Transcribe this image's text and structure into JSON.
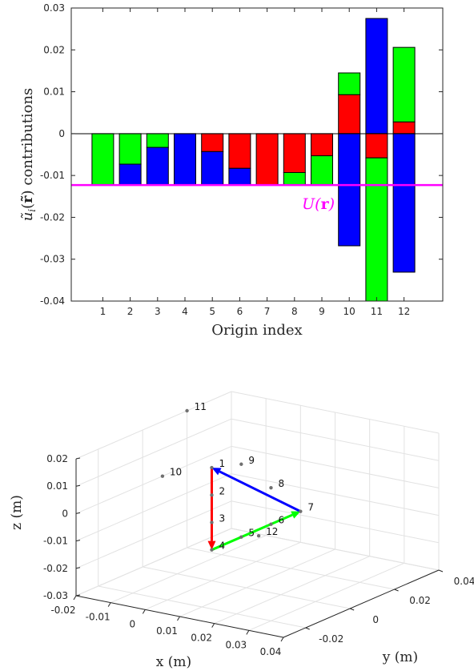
{
  "chart_data": [
    {
      "type": "bar",
      "stacked": true,
      "xlabel": "Origin index",
      "ylabel": "ũ_i(r̃) contributions",
      "ylim": [
        -0.04,
        0.03
      ],
      "yticks": [
        -0.04,
        -0.03,
        -0.02,
        -0.01,
        0,
        0.01,
        0.02,
        0.03
      ],
      "ytick_labels": [
        "-0.04",
        "-0.03",
        "-0.02",
        "-0.01",
        "0",
        "0.01",
        "0.02",
        "0.03"
      ],
      "categories": [
        "1",
        "2",
        "3",
        "4",
        "5",
        "6",
        "7",
        "8",
        "9",
        "10",
        "11",
        "12"
      ],
      "colors": {
        "green": "#00ff00",
        "red": "#ff0000",
        "blue": "#0000ff",
        "line": "#ff00ff"
      },
      "bars": [
        [
          {
            "c": "green",
            "from": 0,
            "to": -0.0123
          }
        ],
        [
          {
            "c": "green",
            "from": 0,
            "to": -0.0073
          },
          {
            "c": "blue",
            "from": -0.0073,
            "to": -0.0123
          }
        ],
        [
          {
            "c": "green",
            "from": 0,
            "to": -0.0033
          },
          {
            "c": "blue",
            "from": -0.0033,
            "to": -0.0123
          }
        ],
        [
          {
            "c": "blue",
            "from": 0,
            "to": -0.0123
          }
        ],
        [
          {
            "c": "red",
            "from": 0,
            "to": -0.0043
          },
          {
            "c": "blue",
            "from": -0.0043,
            "to": -0.0123
          }
        ],
        [
          {
            "c": "red",
            "from": 0,
            "to": -0.0083
          },
          {
            "c": "blue",
            "from": -0.0083,
            "to": -0.0123
          }
        ],
        [
          {
            "c": "red",
            "from": 0,
            "to": -0.0123
          }
        ],
        [
          {
            "c": "red",
            "from": 0,
            "to": -0.0093
          },
          {
            "c": "green",
            "from": -0.0093,
            "to": -0.0123
          }
        ],
        [
          {
            "c": "red",
            "from": 0,
            "to": -0.0053
          },
          {
            "c": "green",
            "from": -0.0053,
            "to": -0.0123
          }
        ],
        [
          {
            "c": "red",
            "from": 0,
            "to": 0.0093
          },
          {
            "c": "green",
            "from": 0.0093,
            "to": 0.0145
          },
          {
            "c": "blue",
            "from": 0,
            "to": -0.0268
          }
        ],
        [
          {
            "c": "blue",
            "from": 0,
            "to": 0.0275
          },
          {
            "c": "red",
            "from": 0,
            "to": -0.0058
          },
          {
            "c": "green",
            "from": -0.0058,
            "to": -0.04
          }
        ],
        [
          {
            "c": "red",
            "from": 0,
            "to": 0.0028
          },
          {
            "c": "green",
            "from": 0.0028,
            "to": 0.0206
          },
          {
            "c": "blue",
            "from": 0,
            "to": -0.0331
          }
        ]
      ],
      "hline": {
        "value": -0.0123,
        "label": "U(r)"
      }
    },
    {
      "type": "scatter3d",
      "xlabel": "x (m)",
      "ylabel": "y (m)",
      "zlabel": "z (m)",
      "xlim": [
        -0.02,
        0.04
      ],
      "ylim": [
        -0.03,
        0.04
      ],
      "zlim": [
        -0.03,
        0.02
      ],
      "xticks": [
        "-0.02",
        "-0.01",
        "0",
        "0.01",
        "0.02",
        "0.03",
        "0.04"
      ],
      "yticks": [
        "-0.02",
        "0",
        "0.02",
        "0.04"
      ],
      "zticks": [
        "-0.03",
        "-0.02",
        "-0.01",
        "0",
        "0.01",
        "0.02"
      ],
      "points": [
        {
          "label": "1",
          "x": 0,
          "y": 0,
          "z": 0.0113
        },
        {
          "label": "2",
          "x": 0,
          "y": 0,
          "z": 0.0013
        },
        {
          "label": "3",
          "x": 0,
          "y": 0,
          "z": -0.0087
        },
        {
          "label": "4",
          "x": 0,
          "y": 0,
          "z": -0.0187
        },
        {
          "label": "5",
          "x": 0,
          "y": 0.0133,
          "z": -0.0187
        },
        {
          "label": "6",
          "x": 0,
          "y": 0.0267,
          "z": -0.0187
        },
        {
          "label": "7",
          "x": 0,
          "y": 0.04,
          "z": -0.0187
        },
        {
          "label": "8",
          "x": 0,
          "y": 0.0267,
          "z": -0.0054
        },
        {
          "label": "9",
          "x": 0,
          "y": 0.0133,
          "z": 0.0079
        },
        {
          "label": "10",
          "x": 0.005,
          "y": -0.03,
          "z": 0.02
        },
        {
          "label": "11",
          "x": -0.02,
          "y": 0.02,
          "z": 0.02
        },
        {
          "label": "12",
          "x": 0.02,
          "y": -0.01,
          "z": -0.005
        }
      ],
      "vectors": [
        {
          "from": "1",
          "to": "4",
          "color": "red"
        },
        {
          "from": "4",
          "to": "7",
          "color": "green"
        },
        {
          "from": "7",
          "to": "1",
          "color": "blue"
        }
      ]
    }
  ]
}
